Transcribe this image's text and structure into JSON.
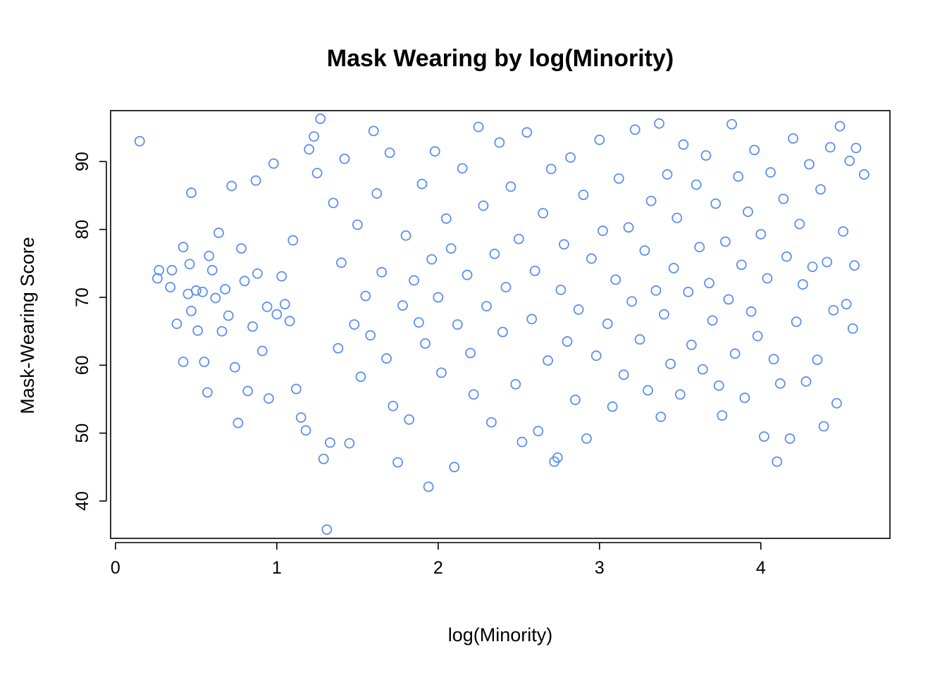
{
  "chart_data": {
    "type": "scatter",
    "title": "Mask Wearing by log(Minority)",
    "xlabel": "log(Minority)",
    "ylabel": "Mask-Wearing Score",
    "xlim": [
      -0.03,
      4.8
    ],
    "ylim": [
      34.5,
      97.5
    ],
    "xticks": [
      0,
      1,
      2,
      3,
      4
    ],
    "yticks": [
      40,
      50,
      60,
      70,
      80,
      90
    ],
    "point_color": "#5B8FEF",
    "marker": "open-circle",
    "grid": false,
    "legend": "none",
    "points": [
      [
        0.15,
        93.0
      ],
      [
        0.26,
        72.8
      ],
      [
        0.27,
        74.0
      ],
      [
        0.34,
        71.5
      ],
      [
        0.35,
        74.0
      ],
      [
        0.38,
        66.1
      ],
      [
        0.42,
        77.4
      ],
      [
        0.42,
        60.5
      ],
      [
        0.45,
        70.5
      ],
      [
        0.46,
        74.9
      ],
      [
        0.47,
        68.0
      ],
      [
        0.47,
        85.4
      ],
      [
        0.5,
        71.0
      ],
      [
        0.51,
        65.1
      ],
      [
        0.54,
        70.8
      ],
      [
        0.55,
        60.5
      ],
      [
        0.57,
        56.0
      ],
      [
        0.58,
        76.1
      ],
      [
        0.6,
        74.0
      ],
      [
        0.62,
        69.9
      ],
      [
        0.64,
        79.5
      ],
      [
        0.66,
        65.0
      ],
      [
        0.68,
        71.2
      ],
      [
        0.7,
        67.3
      ],
      [
        0.72,
        86.4
      ],
      [
        0.74,
        59.7
      ],
      [
        0.76,
        51.5
      ],
      [
        0.78,
        77.2
      ],
      [
        0.8,
        72.4
      ],
      [
        0.82,
        56.2
      ],
      [
        0.85,
        65.7
      ],
      [
        0.87,
        87.2
      ],
      [
        0.88,
        73.5
      ],
      [
        0.91,
        62.1
      ],
      [
        0.94,
        68.6
      ],
      [
        0.95,
        55.1
      ],
      [
        0.98,
        89.7
      ],
      [
        1.0,
        67.5
      ],
      [
        1.03,
        73.1
      ],
      [
        1.05,
        69.0
      ],
      [
        1.08,
        66.5
      ],
      [
        1.1,
        78.4
      ],
      [
        1.12,
        56.5
      ],
      [
        1.15,
        52.3
      ],
      [
        1.18,
        50.4
      ],
      [
        1.2,
        91.8
      ],
      [
        1.23,
        93.7
      ],
      [
        1.25,
        88.3
      ],
      [
        1.27,
        96.3
      ],
      [
        1.29,
        46.2
      ],
      [
        1.31,
        35.8
      ],
      [
        1.33,
        48.6
      ],
      [
        1.35,
        83.9
      ],
      [
        1.38,
        62.5
      ],
      [
        1.4,
        75.1
      ],
      [
        1.42,
        90.4
      ],
      [
        1.45,
        48.5
      ],
      [
        1.48,
        66.0
      ],
      [
        1.5,
        80.7
      ],
      [
        1.52,
        58.3
      ],
      [
        1.55,
        70.2
      ],
      [
        1.58,
        64.4
      ],
      [
        1.6,
        94.5
      ],
      [
        1.62,
        85.3
      ],
      [
        1.65,
        73.7
      ],
      [
        1.68,
        61.0
      ],
      [
        1.7,
        91.3
      ],
      [
        1.72,
        54.0
      ],
      [
        1.75,
        45.7
      ],
      [
        1.78,
        68.8
      ],
      [
        1.8,
        79.1
      ],
      [
        1.82,
        52.0
      ],
      [
        1.85,
        72.5
      ],
      [
        1.88,
        66.3
      ],
      [
        1.9,
        86.7
      ],
      [
        1.92,
        63.2
      ],
      [
        1.94,
        42.1
      ],
      [
        1.96,
        75.6
      ],
      [
        1.98,
        91.5
      ],
      [
        2.0,
        70.0
      ],
      [
        2.02,
        58.9
      ],
      [
        2.05,
        81.6
      ],
      [
        2.08,
        77.2
      ],
      [
        2.1,
        45.0
      ],
      [
        2.12,
        66.0
      ],
      [
        2.15,
        89.0
      ],
      [
        2.18,
        73.3
      ],
      [
        2.2,
        61.8
      ],
      [
        2.22,
        55.7
      ],
      [
        2.25,
        95.1
      ],
      [
        2.28,
        83.5
      ],
      [
        2.3,
        68.7
      ],
      [
        2.33,
        51.6
      ],
      [
        2.35,
        76.4
      ],
      [
        2.38,
        92.8
      ],
      [
        2.4,
        64.9
      ],
      [
        2.42,
        71.5
      ],
      [
        2.45,
        86.3
      ],
      [
        2.48,
        57.2
      ],
      [
        2.5,
        78.6
      ],
      [
        2.52,
        48.7
      ],
      [
        2.55,
        94.3
      ],
      [
        2.58,
        66.8
      ],
      [
        2.6,
        73.9
      ],
      [
        2.62,
        50.3
      ],
      [
        2.65,
        82.4
      ],
      [
        2.68,
        60.7
      ],
      [
        2.7,
        88.9
      ],
      [
        2.72,
        45.8
      ],
      [
        2.74,
        46.4
      ],
      [
        2.76,
        71.1
      ],
      [
        2.78,
        77.8
      ],
      [
        2.8,
        63.5
      ],
      [
        2.82,
        90.6
      ],
      [
        2.85,
        54.9
      ],
      [
        2.87,
        68.2
      ],
      [
        2.9,
        85.1
      ],
      [
        2.92,
        49.2
      ],
      [
        2.95,
        75.7
      ],
      [
        2.98,
        61.4
      ],
      [
        3.0,
        93.2
      ],
      [
        3.02,
        79.8
      ],
      [
        3.05,
        66.1
      ],
      [
        3.08,
        53.9
      ],
      [
        3.1,
        72.6
      ],
      [
        3.12,
        87.5
      ],
      [
        3.15,
        58.6
      ],
      [
        3.18,
        80.3
      ],
      [
        3.2,
        69.4
      ],
      [
        3.22,
        94.7
      ],
      [
        3.25,
        63.8
      ],
      [
        3.28,
        76.9
      ],
      [
        3.3,
        56.3
      ],
      [
        3.32,
        84.2
      ],
      [
        3.35,
        71.0
      ],
      [
        3.37,
        95.6
      ],
      [
        3.38,
        52.4
      ],
      [
        3.4,
        67.5
      ],
      [
        3.42,
        88.1
      ],
      [
        3.44,
        60.2
      ],
      [
        3.46,
        74.3
      ],
      [
        3.48,
        81.7
      ],
      [
        3.5,
        55.7
      ],
      [
        3.52,
        92.5
      ],
      [
        3.55,
        70.8
      ],
      [
        3.57,
        63.0
      ],
      [
        3.6,
        86.6
      ],
      [
        3.62,
        77.4
      ],
      [
        3.64,
        59.4
      ],
      [
        3.66,
        90.9
      ],
      [
        3.68,
        72.1
      ],
      [
        3.7,
        66.6
      ],
      [
        3.72,
        83.8
      ],
      [
        3.74,
        57.0
      ],
      [
        3.76,
        52.6
      ],
      [
        3.78,
        78.2
      ],
      [
        3.8,
        69.7
      ],
      [
        3.82,
        95.5
      ],
      [
        3.84,
        61.7
      ],
      [
        3.86,
        87.8
      ],
      [
        3.88,
        74.8
      ],
      [
        3.9,
        55.2
      ],
      [
        3.92,
        82.6
      ],
      [
        3.94,
        67.9
      ],
      [
        3.96,
        91.7
      ],
      [
        3.98,
        64.3
      ],
      [
        4.0,
        79.3
      ],
      [
        4.02,
        49.5
      ],
      [
        4.04,
        72.8
      ],
      [
        4.06,
        88.4
      ],
      [
        4.08,
        60.9
      ],
      [
        4.1,
        45.8
      ],
      [
        4.12,
        57.3
      ],
      [
        4.14,
        84.5
      ],
      [
        4.16,
        76.0
      ],
      [
        4.18,
        49.2
      ],
      [
        4.2,
        93.4
      ],
      [
        4.22,
        66.4
      ],
      [
        4.24,
        80.8
      ],
      [
        4.26,
        71.9
      ],
      [
        4.28,
        57.6
      ],
      [
        4.3,
        89.6
      ],
      [
        4.32,
        74.5
      ],
      [
        4.35,
        60.8
      ],
      [
        4.37,
        85.9
      ],
      [
        4.39,
        51.0
      ],
      [
        4.41,
        75.2
      ],
      [
        4.43,
        92.1
      ],
      [
        4.45,
        68.1
      ],
      [
        4.47,
        54.4
      ],
      [
        4.49,
        95.2
      ],
      [
        4.51,
        79.7
      ],
      [
        4.53,
        69.0
      ],
      [
        4.55,
        90.1
      ],
      [
        4.57,
        65.4
      ],
      [
        4.58,
        74.7
      ],
      [
        4.59,
        92.0
      ],
      [
        4.64,
        88.1
      ]
    ]
  }
}
